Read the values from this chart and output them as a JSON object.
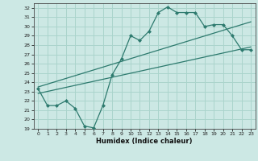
{
  "xlabel": "Humidex (Indice chaleur)",
  "bg_color": "#cce8e4",
  "grid_color": "#aad4cc",
  "line_color": "#2d7a6e",
  "xlim": [
    -0.5,
    23.5
  ],
  "ylim": [
    19,
    32.5
  ],
  "xticks": [
    0,
    1,
    2,
    3,
    4,
    5,
    6,
    7,
    8,
    9,
    10,
    11,
    12,
    13,
    14,
    15,
    16,
    17,
    18,
    19,
    20,
    21,
    22,
    23
  ],
  "yticks": [
    19,
    20,
    21,
    22,
    23,
    24,
    25,
    26,
    27,
    28,
    29,
    30,
    31,
    32
  ],
  "line1_x": [
    0,
    1,
    2,
    3,
    4,
    5,
    6,
    7,
    8,
    9,
    10,
    11,
    12,
    13,
    14,
    15,
    16,
    17,
    18,
    19,
    20,
    21,
    22,
    23
  ],
  "line1_y": [
    23.3,
    21.5,
    21.5,
    22.0,
    21.2,
    19.3,
    19.1,
    21.5,
    24.8,
    26.5,
    29.0,
    28.5,
    29.5,
    31.5,
    32.1,
    31.5,
    31.5,
    31.5,
    30.0,
    30.2,
    30.2,
    29.0,
    27.5,
    27.5
  ],
  "line2_x": [
    0,
    23
  ],
  "line2_y": [
    22.8,
    27.8
  ],
  "line3_x": [
    0,
    23
  ],
  "line3_y": [
    23.5,
    30.5
  ]
}
